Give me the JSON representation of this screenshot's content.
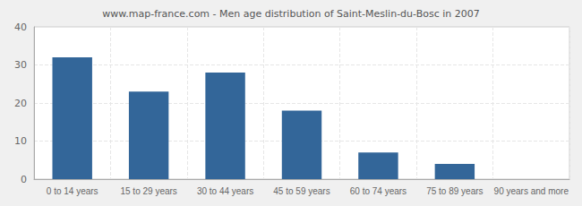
{
  "chart_data": {
    "type": "bar",
    "title": "www.map-france.com - Men age distribution of Saint-Meslin-du-Bosc in 2007",
    "categories": [
      "0 to 14 years",
      "15 to 29 years",
      "30 to 44 years",
      "45 to 59 years",
      "60 to 74 years",
      "75 to 89 years",
      "90 years and more"
    ],
    "values": [
      32,
      23,
      28,
      18,
      7,
      4,
      0
    ],
    "color": "#336699",
    "ylim": [
      0,
      40
    ],
    "yticks": [
      0,
      10,
      20,
      30,
      40
    ],
    "grid": true
  }
}
